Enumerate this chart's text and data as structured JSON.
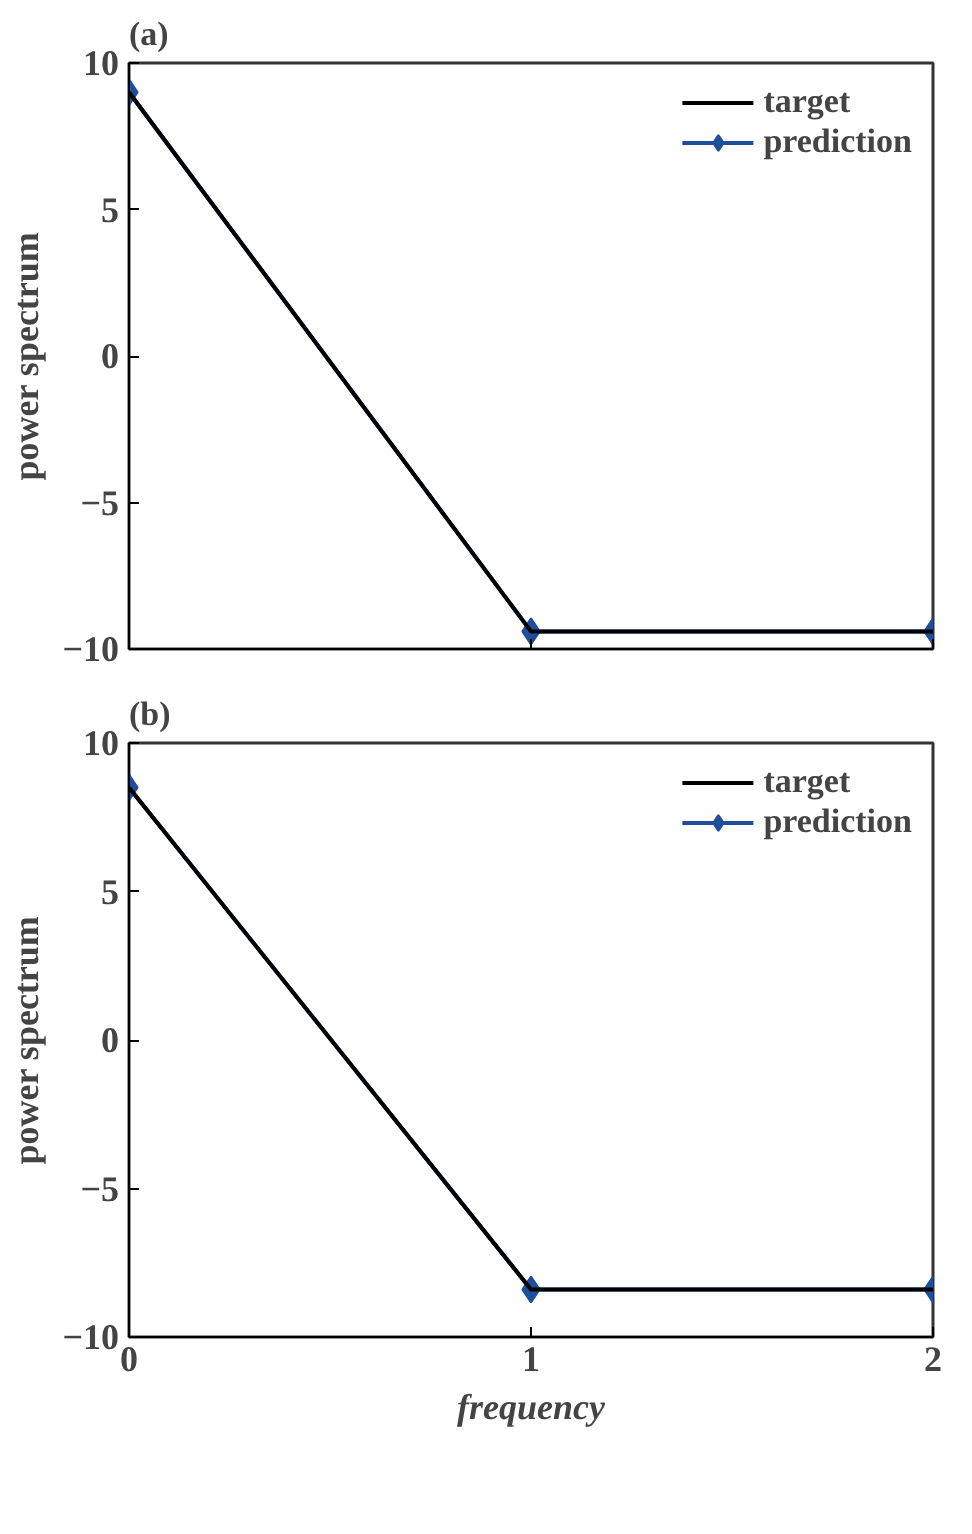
{
  "chart_data": [
    {
      "type": "line",
      "title": "(a)",
      "ylabel": "power spectrum",
      "x": [
        0,
        1,
        2
      ],
      "xlim": [
        0,
        2
      ],
      "xticks": [
        0,
        1,
        2
      ],
      "ylim": [
        -10,
        10
      ],
      "yticks": [
        -10,
        -5,
        0,
        5,
        10
      ],
      "tick_labels": "y",
      "legend": "top right",
      "grid": false,
      "series": [
        {
          "name": "prediction",
          "color": "#1f4e9c",
          "marker": "diamond",
          "values": [
            9.0,
            -9.4,
            -9.4
          ]
        },
        {
          "name": "target",
          "color": "#000000",
          "marker": "none",
          "values": [
            9.0,
            -9.4,
            -9.4
          ]
        }
      ]
    },
    {
      "type": "line",
      "title": "(b)",
      "xlabel": "frequency",
      "ylabel": "power spectrum",
      "x": [
        0,
        1,
        2
      ],
      "xlim": [
        0,
        2
      ],
      "xticks": [
        0,
        1,
        2
      ],
      "ylim": [
        -10,
        10
      ],
      "yticks": [
        -10,
        -5,
        0,
        5,
        10
      ],
      "legend": "top right",
      "grid": false,
      "series": [
        {
          "name": "prediction",
          "color": "#1f4e9c",
          "marker": "diamond",
          "values": [
            8.5,
            -8.4,
            -8.4
          ]
        },
        {
          "name": "target",
          "color": "#000000",
          "marker": "none",
          "values": [
            8.5,
            -8.4,
            -8.4
          ]
        }
      ]
    }
  ]
}
